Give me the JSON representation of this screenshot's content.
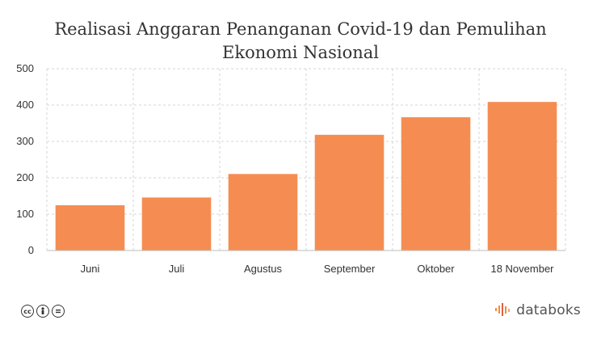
{
  "title_line1": "Realisasi Anggaran Penanganan Covid-19 dan Pemulihan",
  "title_line2": "Ekonomi Nasional",
  "brand": "databoks",
  "license_icons": [
    "cc-icon",
    "person-icon",
    "equal-icon"
  ],
  "chart_data": {
    "type": "bar",
    "categories": [
      "Juni",
      "Juli",
      "Agustus",
      "September",
      "Oktober",
      "18 November"
    ],
    "values": [
      124.6,
      145.8,
      210.5,
      318.2,
      366.5,
      408.6
    ],
    "ylim": [
      0,
      500
    ],
    "yticks": [
      0,
      100,
      200,
      300,
      400,
      500
    ],
    "grid": true,
    "bar_color": "#f58d52"
  }
}
